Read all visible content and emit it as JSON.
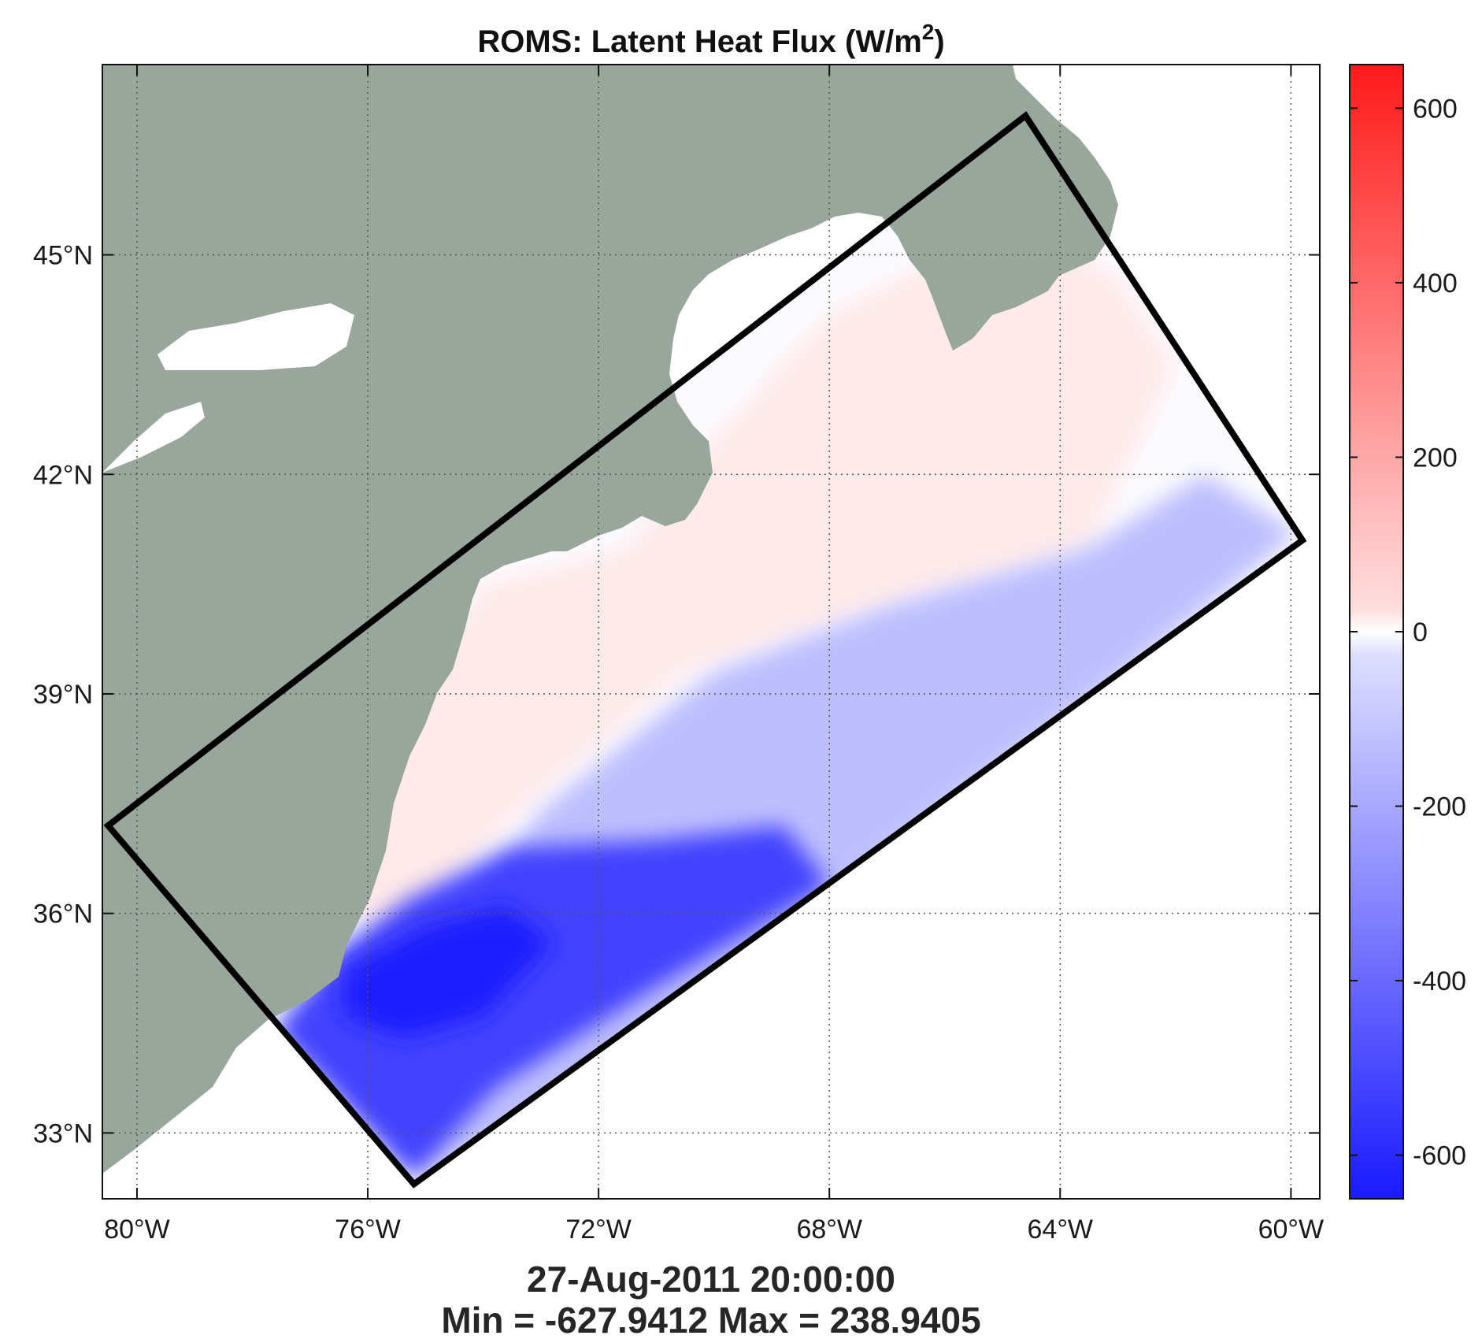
{
  "title": "ROMS: Latent Heat Flux (W/m",
  "title_superscript": "2",
  "title_close": ")",
  "timestamp": "27-Aug-2011 20:00:00",
  "minmax": "Min = -627.9412  Max = 238.9405",
  "colors": {
    "land": "#98a69b",
    "water_outside": "#ffffff",
    "positive": "#ff2020",
    "negative": "#1a1aff",
    "neutral": "#ffffff"
  },
  "chart_data": {
    "type": "heatmap",
    "xlim": [
      -80.6,
      -59.5
    ],
    "ylim": [
      32.1,
      47.6
    ],
    "x_ticks": [
      -80,
      -76,
      -72,
      -68,
      -64,
      -60
    ],
    "x_tick_labels": [
      "80°W",
      "76°W",
      "72°W",
      "68°W",
      "64°W",
      "60°W"
    ],
    "y_ticks": [
      45,
      42,
      39,
      36,
      33
    ],
    "y_tick_labels": [
      "45°N",
      "42°N",
      "39°N",
      "36°N",
      "33°N"
    ],
    "grid": true,
    "colorbar": {
      "range": [
        -650,
        650
      ],
      "ticks": [
        600,
        400,
        200,
        0,
        -200,
        -400,
        -600
      ],
      "tick_labels": [
        "600",
        "400",
        "200",
        "0",
        "-200",
        "-400",
        "-600"
      ]
    },
    "domain_box_lonlat": [
      [
        -80.5,
        37.2
      ],
      [
        -64.6,
        46.9
      ],
      [
        -59.8,
        41.1
      ],
      [
        -75.2,
        32.3
      ]
    ],
    "field_regions": [
      {
        "value": 60,
        "points": [
          [
            -76.6,
            36.3
          ],
          [
            -75.2,
            39.0
          ],
          [
            -74.0,
            40.5
          ],
          [
            -71.5,
            41.0
          ],
          [
            -70.0,
            42.5
          ],
          [
            -68.0,
            44.2
          ],
          [
            -64.8,
            45.5
          ],
          [
            -63.0,
            44.7
          ],
          [
            -62.0,
            43.5
          ],
          [
            -63.5,
            41.0
          ],
          [
            -67.0,
            40.2
          ],
          [
            -70.5,
            39.3
          ],
          [
            -73.5,
            37.3
          ],
          [
            -75.5,
            35.6
          ]
        ]
      },
      {
        "value": -180,
        "points": [
          [
            -73.0,
            37.4
          ],
          [
            -70.0,
            39.3
          ],
          [
            -67.0,
            40.2
          ],
          [
            -63.5,
            41.0
          ],
          [
            -61.5,
            42.0
          ],
          [
            -59.9,
            41.2
          ],
          [
            -63.0,
            39.2
          ],
          [
            -67.5,
            36.5
          ],
          [
            -71.5,
            33.8
          ],
          [
            -75.2,
            32.4
          ],
          [
            -76.3,
            33.8
          ]
        ]
      },
      {
        "value": -520,
        "points": [
          [
            -77.6,
            34.4
          ],
          [
            -76.5,
            35.5
          ],
          [
            -75.3,
            36.2
          ],
          [
            -73.5,
            36.9
          ],
          [
            -71.0,
            37.0
          ],
          [
            -68.8,
            37.2
          ],
          [
            -68.0,
            36.4
          ],
          [
            -71.0,
            35.0
          ],
          [
            -73.8,
            33.6
          ],
          [
            -75.2,
            32.4
          ],
          [
            -76.3,
            33.3
          ]
        ]
      },
      {
        "value": -620,
        "points": [
          [
            -76.4,
            35.2
          ],
          [
            -75.0,
            35.8
          ],
          [
            -73.6,
            36.1
          ],
          [
            -72.8,
            35.6
          ],
          [
            -74.0,
            34.6
          ],
          [
            -75.4,
            34.3
          ],
          [
            -76.4,
            34.6
          ]
        ]
      }
    ]
  }
}
